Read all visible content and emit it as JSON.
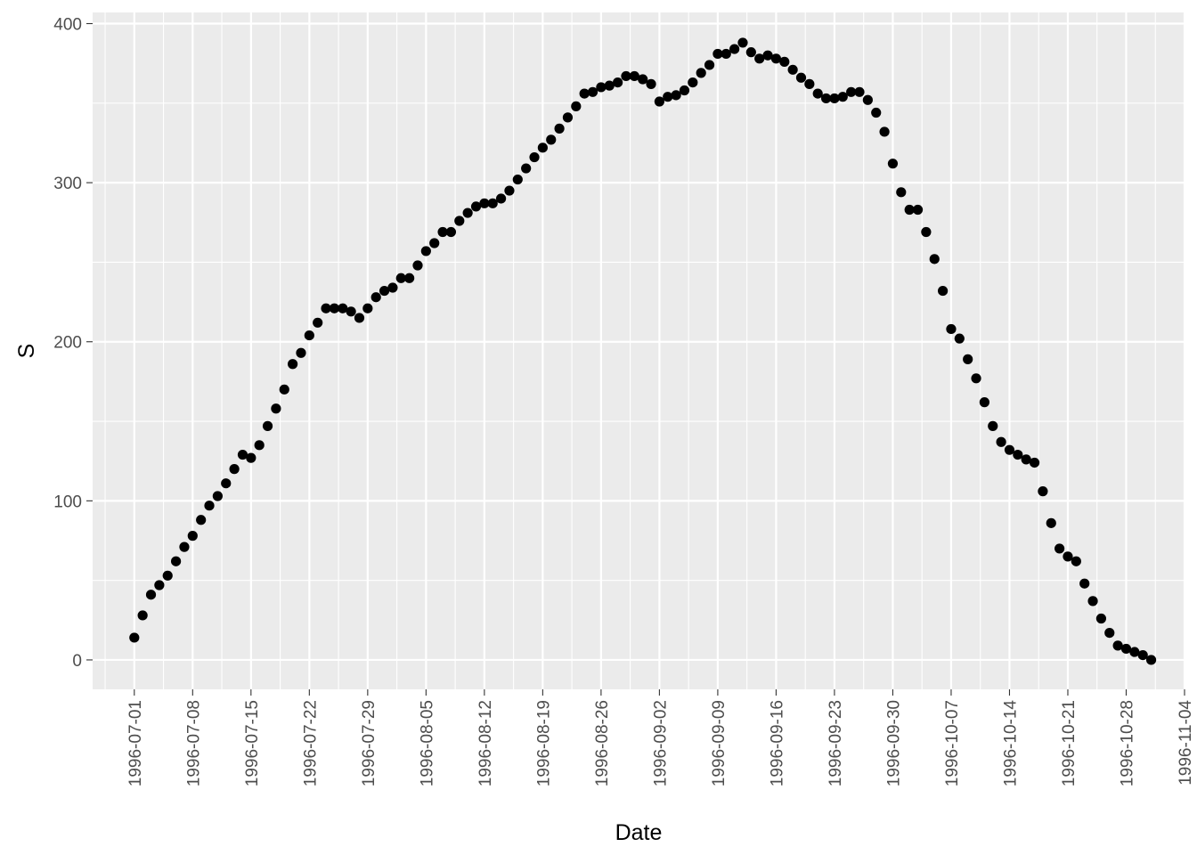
{
  "chart_data": {
    "type": "scatter",
    "title": "",
    "xlabel": "Date",
    "ylabel": "S",
    "ylim": [
      -18.5,
      407
    ],
    "xlim": [
      "1996-06-26",
      "1996-11-04"
    ],
    "y_ticks": [
      0,
      100,
      200,
      300,
      400
    ],
    "y_tick_labels": [
      "0",
      "100",
      "200",
      "300",
      "400"
    ],
    "x_ticks": [
      "1996-07-01",
      "1996-07-08",
      "1996-07-15",
      "1996-07-22",
      "1996-07-29",
      "1996-08-05",
      "1996-08-12",
      "1996-08-19",
      "1996-08-26",
      "1996-09-02",
      "1996-09-09",
      "1996-09-16",
      "1996-09-23",
      "1996-09-30",
      "1996-10-07",
      "1996-10-14",
      "1996-10-21",
      "1996-10-28",
      "1996-11-04"
    ],
    "grid": true,
    "legend": "none",
    "colors": {
      "panel": "#ebebeb",
      "grid": "#ffffff",
      "point": "#000000"
    },
    "start_date": "1996-07-01",
    "values": [
      14,
      28,
      41,
      47,
      53,
      62,
      71,
      78,
      88,
      97,
      103,
      111,
      120,
      129,
      127,
      135,
      147,
      158,
      170,
      186,
      193,
      204,
      212,
      221,
      221,
      221,
      219,
      215,
      221,
      228,
      232,
      234,
      240,
      240,
      248,
      257,
      262,
      269,
      269,
      276,
      281,
      285,
      287,
      287,
      290,
      295,
      302,
      309,
      316,
      322,
      327,
      334,
      341,
      348,
      356,
      357,
      360,
      361,
      363,
      367,
      367,
      365,
      362,
      351,
      354,
      355,
      358,
      363,
      369,
      374,
      381,
      381,
      384,
      388,
      382,
      378,
      380,
      378,
      376,
      371,
      366,
      362,
      356,
      353,
      353,
      354,
      357,
      357,
      352,
      344,
      332,
      312,
      294,
      283,
      283,
      269,
      252,
      232,
      208,
      202,
      189,
      177,
      162,
      147,
      137,
      132,
      129,
      126,
      124,
      106,
      86,
      70,
      65,
      62,
      48,
      37,
      26,
      17,
      9,
      7,
      5,
      3,
      0
    ]
  }
}
